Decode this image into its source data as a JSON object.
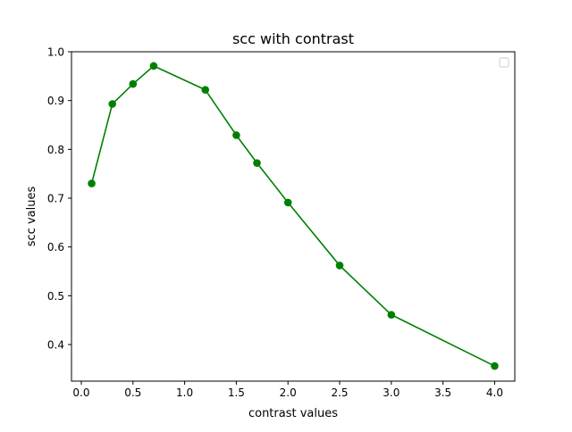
{
  "chart_data": {
    "type": "line",
    "title": "scc with contrast",
    "xlabel": "contrast values",
    "ylabel": "scc values",
    "xlim": [
      -0.095,
      4.195
    ],
    "ylim": [
      0.325,
      1.0
    ],
    "xticks": [
      0.0,
      0.5,
      1.0,
      1.5,
      2.0,
      2.5,
      3.0,
      3.5,
      4.0
    ],
    "xtick_labels": [
      "0.0",
      "0.5",
      "1.0",
      "1.5",
      "2.0",
      "2.5",
      "3.0",
      "3.5",
      "4.0"
    ],
    "yticks": [
      0.4,
      0.5,
      0.6,
      0.7,
      0.8,
      0.9,
      1.0
    ],
    "ytick_labels": [
      "0.4",
      "0.5",
      "0.6",
      "0.7",
      "0.8",
      "0.9",
      "1.0"
    ],
    "grid": false,
    "legend": {
      "position": "top-right",
      "entries": []
    },
    "series": [
      {
        "name": "",
        "color": "#008000",
        "marker": "circle",
        "x": [
          0.1,
          0.3,
          0.5,
          0.7,
          1.2,
          1.5,
          1.7,
          2.0,
          2.5,
          3.0,
          4.0
        ],
        "y": [
          0.73,
          0.893,
          0.934,
          0.971,
          0.922,
          0.829,
          0.772,
          0.691,
          0.562,
          0.461,
          0.356
        ]
      }
    ]
  }
}
